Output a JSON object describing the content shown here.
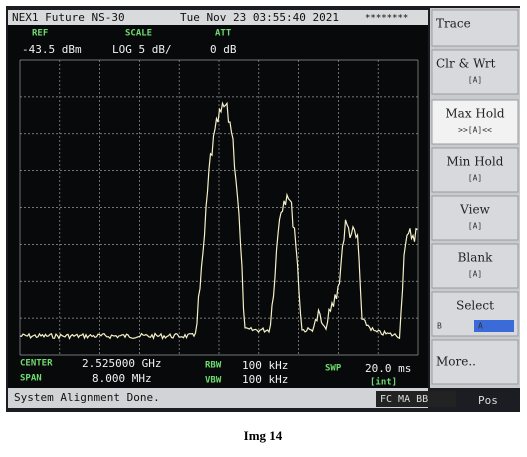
{
  "header": {
    "model": "NEX1 Future NS-30",
    "datetime": "Tue Nov 23 03:55:40 2021",
    "marker": "********"
  },
  "params": {
    "ref_label": "REF",
    "ref_value": "-43.5 dBm",
    "scale_label": "SCALE",
    "scale_value": "LOG  5 dB/",
    "att_label": "ATT",
    "att_value": "0 dB"
  },
  "footer": {
    "center_label": "CENTER",
    "center_value": "2.525000 GHz",
    "span_label": "SPAN",
    "span_value": "8.000 MHz",
    "rbw_label": "RBW",
    "rbw_value": "100 kHz",
    "vbw_label": "VBW",
    "vbw_value": "100 kHz",
    "swp_label": "SWP",
    "swp_value": "20.0 ms",
    "swp_mode": "[int]"
  },
  "status": {
    "message": "System Alignment Done.",
    "flags": "FC MA BB",
    "pos": "Pos"
  },
  "softkeys": [
    {
      "label": "Trace"
    },
    {
      "label": "Clr & Wrt",
      "sub": "[A]"
    },
    {
      "label": "Max  Hold",
      "sub": ">>[A]<<"
    },
    {
      "label": "Min  Hold",
      "sub": "[A]"
    },
    {
      "label": "View",
      "sub": "[A]"
    },
    {
      "label": "Blank",
      "sub": "[A]"
    },
    {
      "label": "Select",
      "sub_b": "B",
      "sub_a": "A"
    },
    {
      "label": "More.."
    }
  ],
  "caption": "Img 14"
}
